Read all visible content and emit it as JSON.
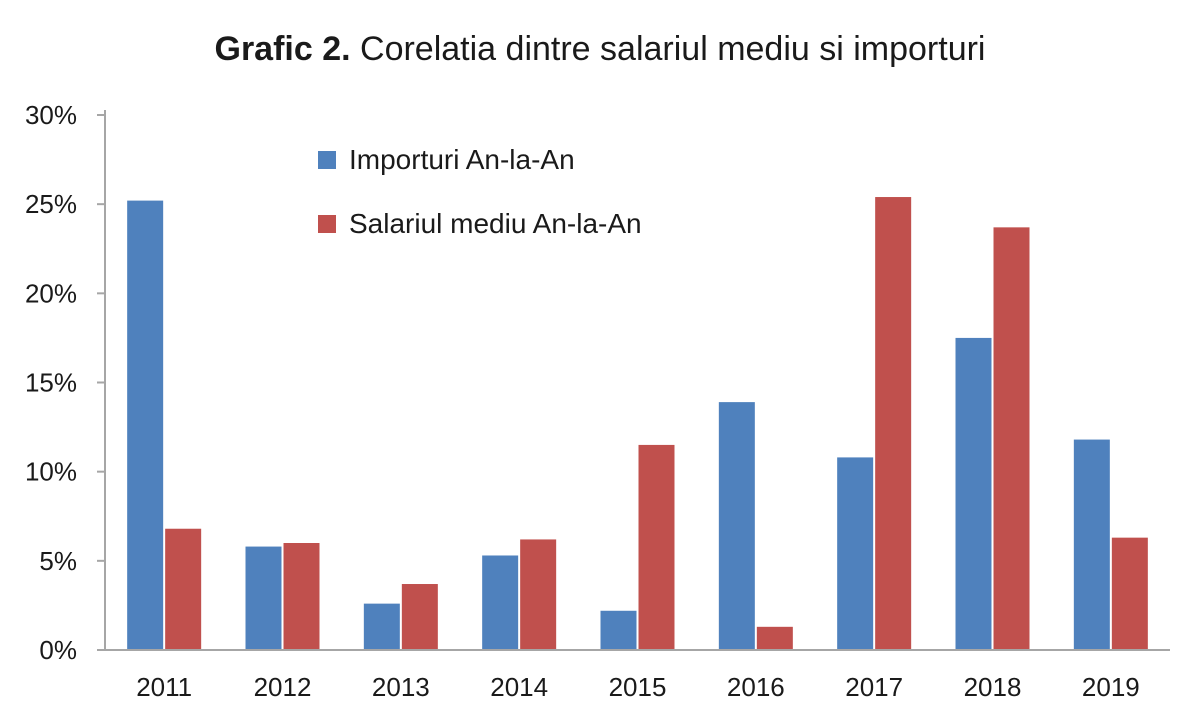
{
  "chart_data": {
    "type": "bar",
    "title_bold": "Grafic 2.",
    "title_rest": " Corelatia dintre salariul mediu si importuri",
    "xlabel": "",
    "ylabel": "",
    "categories": [
      "2011",
      "2012",
      "2013",
      "2014",
      "2015",
      "2016",
      "2017",
      "2018",
      "2019"
    ],
    "series": [
      {
        "name": "Importuri An-la-An",
        "color": "#4f81bd",
        "values": [
          25.2,
          5.8,
          2.6,
          5.3,
          2.2,
          13.9,
          10.8,
          17.5,
          11.8
        ]
      },
      {
        "name": "Salariul mediu An-la-An",
        "color": "#c0504d",
        "values": [
          6.8,
          6.0,
          3.7,
          6.2,
          11.5,
          1.3,
          25.4,
          23.7,
          6.3
        ]
      }
    ],
    "ylim": [
      0,
      30
    ],
    "yticks": [
      0,
      5,
      10,
      15,
      20,
      25,
      30
    ],
    "ytick_suffix": "%",
    "grid": false,
    "legend_position": "top-center"
  }
}
